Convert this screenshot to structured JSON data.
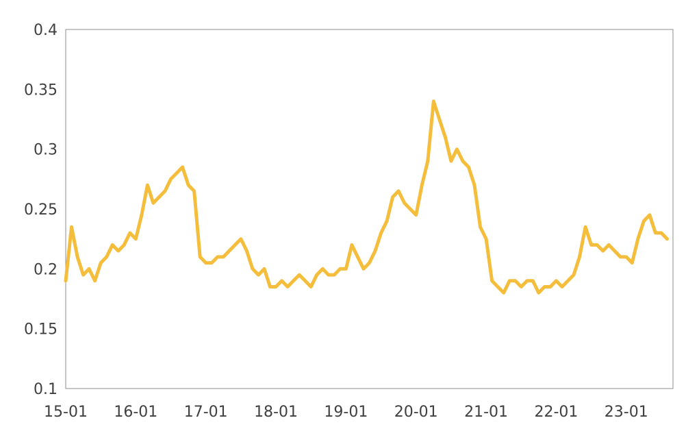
{
  "chart_data": {
    "type": "line",
    "title": "",
    "xlabel": "",
    "ylabel": "",
    "ylim": [
      0.1,
      0.4
    ],
    "yticks": [
      "0.1",
      "0.15",
      "0.2",
      "0.25",
      "0.3",
      "0.35",
      "0.4"
    ],
    "xticks": [
      "15-01",
      "16-01",
      "17-01",
      "18-01",
      "19-01",
      "20-01",
      "21-01",
      "22-01",
      "23-01"
    ],
    "x_range": [
      "2015-01",
      "2023-08"
    ],
    "grid": false,
    "legend": "none",
    "color": "#F4BE3C",
    "series": [
      {
        "x": [
          "2015-01",
          "2015-02",
          "2015-03",
          "2015-04",
          "2015-05",
          "2015-06",
          "2015-07",
          "2015-08",
          "2015-09",
          "2015-10",
          "2015-11",
          "2015-12",
          "2016-01",
          "2016-02",
          "2016-03",
          "2016-04",
          "2016-05",
          "2016-06",
          "2016-07",
          "2016-08",
          "2016-09",
          "2016-10",
          "2016-11",
          "2016-12",
          "2017-01",
          "2017-02",
          "2017-03",
          "2017-04",
          "2017-05",
          "2017-06",
          "2017-07",
          "2017-08",
          "2017-09",
          "2017-10",
          "2017-11",
          "2017-12",
          "2018-01",
          "2018-02",
          "2018-03",
          "2018-04",
          "2018-05",
          "2018-06",
          "2018-07",
          "2018-08",
          "2018-09",
          "2018-10",
          "2018-11",
          "2018-12",
          "2019-01",
          "2019-02",
          "2019-03",
          "2019-04",
          "2019-05",
          "2019-06",
          "2019-07",
          "2019-08",
          "2019-09",
          "2019-10",
          "2019-11",
          "2019-12",
          "2020-01",
          "2020-02",
          "2020-03",
          "2020-04",
          "2020-05",
          "2020-06",
          "2020-07",
          "2020-08",
          "2020-09",
          "2020-10",
          "2020-11",
          "2020-12",
          "2021-01",
          "2021-02",
          "2021-03",
          "2021-04",
          "2021-05",
          "2021-06",
          "2021-07",
          "2021-08",
          "2021-09",
          "2021-10",
          "2021-11",
          "2021-12",
          "2022-01",
          "2022-02",
          "2022-03",
          "2022-04",
          "2022-05",
          "2022-06",
          "2022-07",
          "2022-08",
          "2022-09",
          "2022-10",
          "2022-11",
          "2022-12",
          "2023-01",
          "2023-02",
          "2023-03",
          "2023-04",
          "2023-05",
          "2023-06",
          "2023-07",
          "2023-08"
        ],
        "values": [
          0.19,
          0.235,
          0.21,
          0.195,
          0.2,
          0.19,
          0.205,
          0.21,
          0.22,
          0.215,
          0.22,
          0.23,
          0.225,
          0.245,
          0.27,
          0.255,
          0.26,
          0.265,
          0.275,
          0.28,
          0.285,
          0.27,
          0.265,
          0.21,
          0.205,
          0.205,
          0.21,
          0.21,
          0.215,
          0.22,
          0.225,
          0.215,
          0.2,
          0.195,
          0.2,
          0.185,
          0.185,
          0.19,
          0.185,
          0.19,
          0.195,
          0.19,
          0.185,
          0.195,
          0.2,
          0.195,
          0.195,
          0.2,
          0.2,
          0.22,
          0.21,
          0.2,
          0.205,
          0.215,
          0.23,
          0.24,
          0.26,
          0.265,
          0.255,
          0.25,
          0.245,
          0.27,
          0.29,
          0.34,
          0.325,
          0.31,
          0.29,
          0.3,
          0.29,
          0.285,
          0.27,
          0.235,
          0.225,
          0.19,
          0.185,
          0.18,
          0.19,
          0.19,
          0.185,
          0.19,
          0.19,
          0.18,
          0.185,
          0.185,
          0.19,
          0.185,
          0.19,
          0.195,
          0.21,
          0.235,
          0.22,
          0.22,
          0.215,
          0.22,
          0.215,
          0.21,
          0.21,
          0.205,
          0.225,
          0.24,
          0.245,
          0.23,
          0.23,
          0.225
        ]
      }
    ]
  }
}
